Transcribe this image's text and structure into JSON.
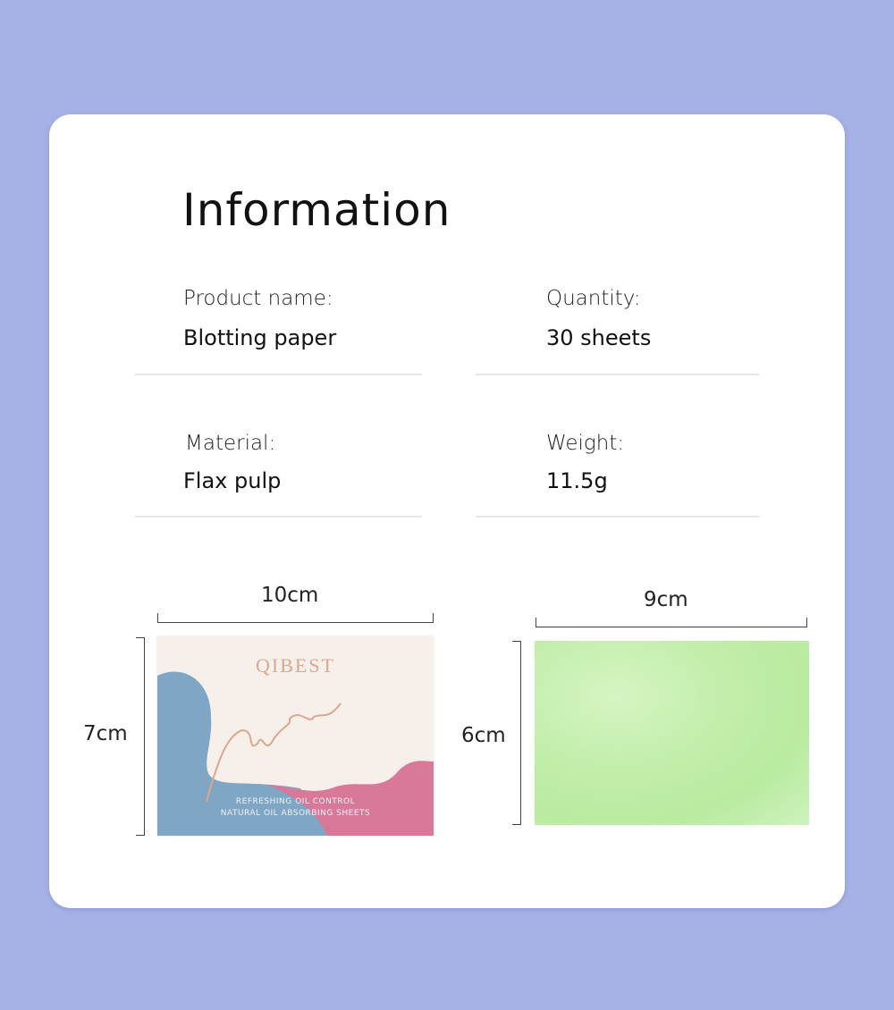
{
  "title": "Information",
  "fields": [
    {
      "label": "Product name:",
      "value": "Blotting paper"
    },
    {
      "label": "Quantity:",
      "value": "30 sheets"
    },
    {
      "label": "Material:",
      "value": "Flax pulp"
    },
    {
      "label": "Weight:",
      "value": "11.5g"
    }
  ],
  "dimensions": {
    "box_width": "10cm",
    "box_height": "7cm",
    "sheet_width": "9cm",
    "sheet_height": "6cm"
  },
  "product_box": {
    "brand": "QIBEST",
    "line1": "REFRESHING OIL CONTROL",
    "line2": "NATURAL OIL ABSORBING SHEETS",
    "colors": {
      "blue": "#7fa6c4",
      "pink": "#d9799a",
      "cream": "#f6efea",
      "gold": "#d9a88e"
    }
  },
  "sheet_color": "#c2eeaa",
  "background_color": "#a6b2e6"
}
